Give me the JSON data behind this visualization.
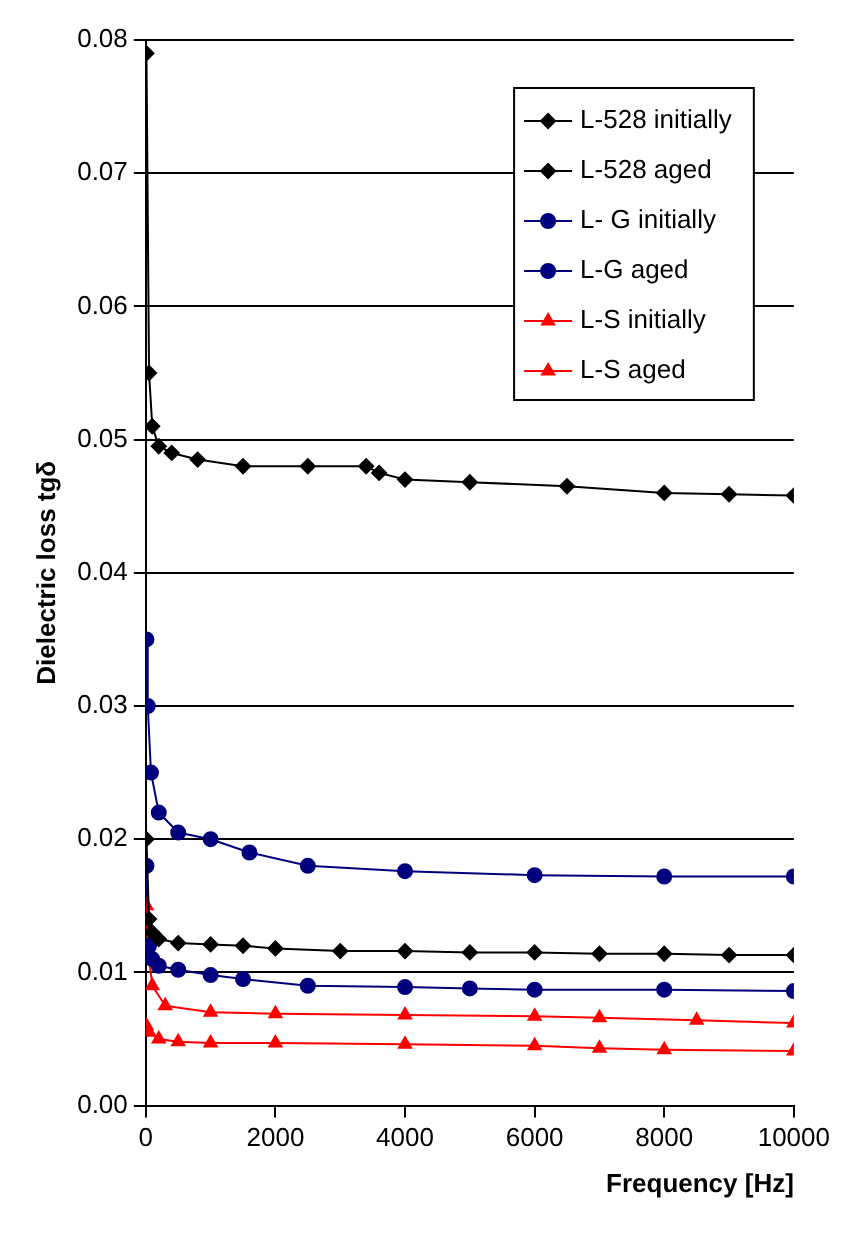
{
  "chart_data": {
    "type": "line",
    "xlabel": "Frequency [Hz]",
    "ylabel": "Dielectric loss tgδ",
    "xlim": [
      0,
      10000
    ],
    "xticks": [
      0,
      2000,
      4000,
      6000,
      8000,
      10000
    ],
    "ylim": [
      0,
      0.08
    ],
    "yticks": [
      {
        "value": 0,
        "label": "0.00"
      },
      0.01,
      0.02,
      0.03,
      0.04,
      0.05,
      0.06,
      0.07,
      0.08
    ],
    "grid": "y",
    "legend": "top right",
    "series": [
      {
        "name": "L-528 initially",
        "color": "#000000",
        "marker": "diamond",
        "x": [
          10,
          50,
          100,
          200,
          500,
          1000,
          1500,
          2000,
          3000,
          4000,
          5000,
          6000,
          7000,
          8000,
          9000,
          10000
        ],
        "values": [
          0.02,
          0.014,
          0.013,
          0.0125,
          0.0122,
          0.0121,
          0.012,
          0.0118,
          0.0116,
          0.0116,
          0.0115,
          0.0115,
          0.0114,
          0.0114,
          0.0113,
          0.0113
        ]
      },
      {
        "name": "L-528 aged",
        "color": "#000000",
        "marker": "diamond",
        "x": [
          10,
          50,
          100,
          200,
          400,
          800,
          1500,
          2500,
          3400,
          3600,
          4000,
          5000,
          6500,
          8000,
          9000,
          10000
        ],
        "values": [
          0.079,
          0.055,
          0.051,
          0.0495,
          0.049,
          0.0485,
          0.048,
          0.048,
          0.048,
          0.0475,
          0.047,
          0.0468,
          0.0465,
          0.046,
          0.0459,
          0.0458
        ]
      },
      {
        "name": "L- G initially",
        "color": "#00007f",
        "marker": "circle",
        "x": [
          10,
          50,
          100,
          200,
          500,
          1000,
          1500,
          2500,
          4000,
          5000,
          6000,
          8000,
          10000
        ],
        "values": [
          0.018,
          0.012,
          0.011,
          0.0105,
          0.0102,
          0.0098,
          0.0095,
          0.009,
          0.0089,
          0.0088,
          0.0087,
          0.0087,
          0.0086
        ]
      },
      {
        "name": "L-G aged",
        "color": "#00007f",
        "marker": "circle",
        "x": [
          10,
          30,
          80,
          200,
          500,
          1000,
          1600,
          2500,
          4000,
          6000,
          8000,
          10000
        ],
        "values": [
          0.035,
          0.03,
          0.025,
          0.022,
          0.0205,
          0.02,
          0.019,
          0.018,
          0.0176,
          0.0173,
          0.0172,
          0.0172
        ]
      },
      {
        "name": "L-S initially",
        "color": "#ff0000",
        "marker": "triangle",
        "x": [
          10,
          50,
          200,
          500,
          1000,
          2000,
          4000,
          6000,
          7000,
          8000,
          10000
        ],
        "values": [
          0.006,
          0.0055,
          0.005,
          0.0048,
          0.0047,
          0.0047,
          0.0046,
          0.0045,
          0.0043,
          0.0042,
          0.0041
        ]
      },
      {
        "name": "L-S aged",
        "color": "#ff0000",
        "marker": "triangle",
        "x": [
          10,
          30,
          100,
          300,
          1000,
          2000,
          4000,
          6000,
          7000,
          8500,
          10000
        ],
        "values": [
          0.015,
          0.012,
          0.009,
          0.0075,
          0.007,
          0.0069,
          0.0068,
          0.0067,
          0.0066,
          0.0064,
          0.0062
        ]
      }
    ]
  }
}
